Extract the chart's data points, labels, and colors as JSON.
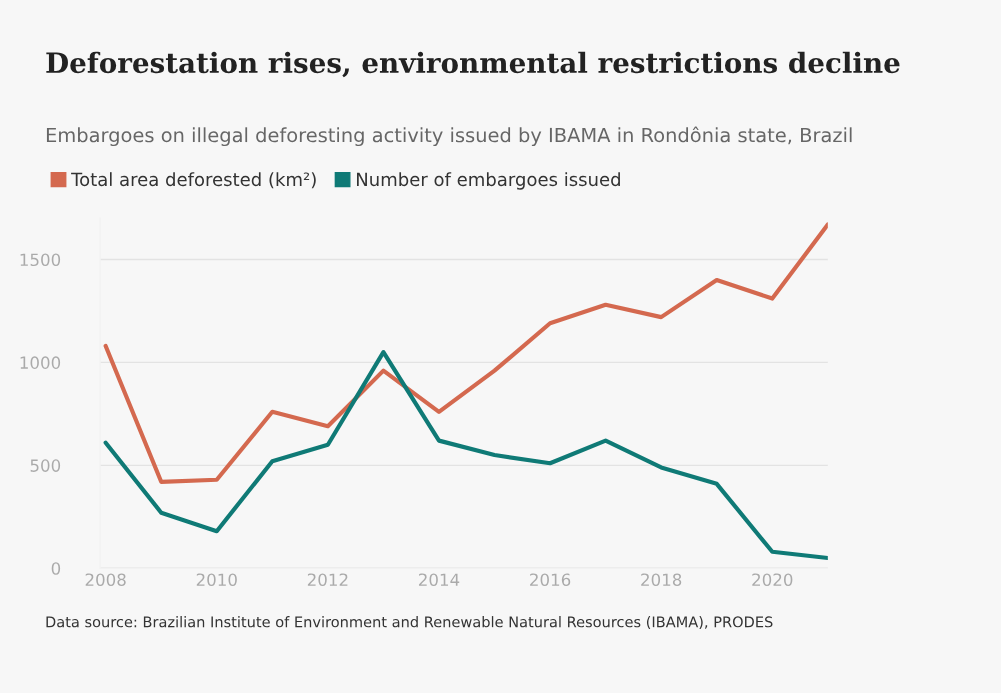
{
  "chart_data": {
    "type": "line",
    "title": "Deforestation rises, environmental restrictions decline",
    "subtitle": "Embargoes on illegal deforesting activity issued by IBAMA in Rondônia state, Brazil",
    "x": [
      2008,
      2009,
      2010,
      2011,
      2012,
      2013,
      2014,
      2015,
      2016,
      2017,
      2018,
      2019,
      2020,
      2021
    ],
    "series": [
      {
        "name": "Total area deforested (km²)",
        "color": "#d4694f",
        "values": [
          1080,
          420,
          430,
          760,
          690,
          960,
          760,
          960,
          1190,
          1280,
          1220,
          1400,
          1310,
          1670
        ]
      },
      {
        "name": "Number of embargoes issued",
        "color": "#0f7a76",
        "values": [
          610,
          270,
          180,
          520,
          600,
          1050,
          620,
          550,
          510,
          620,
          490,
          410,
          80,
          50
        ]
      }
    ],
    "xlim": [
      2007.9,
      2021
    ],
    "xticks": [
      2008,
      2010,
      2012,
      2014,
      2016,
      2018,
      2020
    ],
    "ylim": [
      0,
      1700
    ],
    "yticks": [
      0,
      500,
      1000,
      1500
    ],
    "grid": "y",
    "legend": "top left",
    "marker": "none",
    "line_style": "solid",
    "annotations": [
      "Data source: Brazilian Institute of Environment and Renewable Natural Resources (IBAMA), PRODES"
    ]
  }
}
